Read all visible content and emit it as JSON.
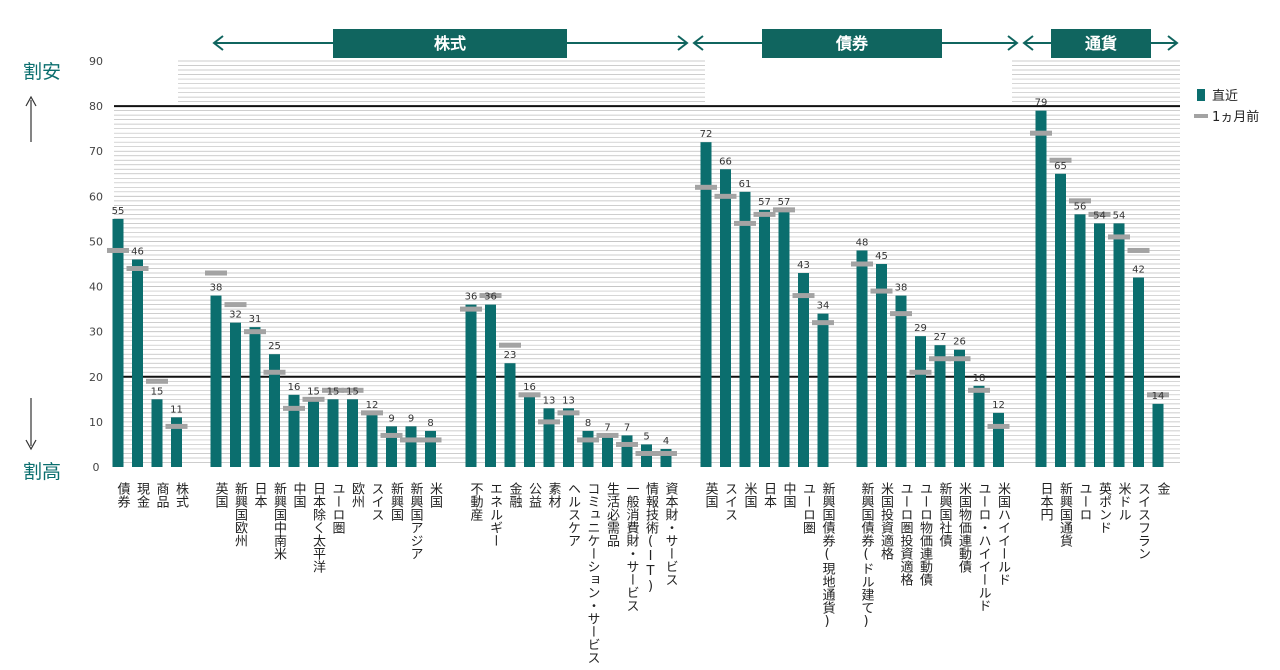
{
  "chart_data": {
    "type": "bar",
    "ylim": [
      0,
      90
    ],
    "yticks": [
      0,
      10,
      20,
      30,
      40,
      50,
      60,
      70,
      80,
      90
    ],
    "threshold_lines": [
      20,
      80
    ],
    "colors": {
      "bar": "#0b6e6e",
      "marker": "#a3a3a3",
      "banner": "#10655f",
      "threshold": "#111111",
      "grid": "#bdbdbd"
    },
    "side_labels": {
      "top": "割安",
      "bottom": "割高"
    },
    "legend": [
      {
        "name": "直近",
        "kind": "bar"
      },
      {
        "name": "1ヵ月前",
        "kind": "marker"
      }
    ],
    "sections": [
      {
        "name": "株式",
        "from": 4,
        "to": 27
      },
      {
        "name": "債券",
        "from": 28,
        "to": 43
      },
      {
        "name": "通貨",
        "from": 44,
        "to": 50
      }
    ],
    "categories": [
      "債券",
      "現金",
      "商品",
      "株式",
      "英国",
      "新興国欧州",
      "日本",
      "新興国中南米",
      "中国",
      "日本除く太平洋",
      "ユーロ圏",
      "欧州",
      "スイス",
      "新興国",
      "新興国アジア",
      "米国",
      "不動産",
      "エネルギー",
      "金融",
      "公益",
      "素材",
      "ヘルスケア",
      "コミュニケーション・サービス",
      "生活必需品",
      "一般消費財・サービス",
      "情報技術(IT)",
      "資本財・サービス",
      "英国",
      "スイス",
      "米国",
      "日本",
      "中国",
      "ユーロ圏",
      "新興国債券(現地通貨)",
      "新興国債券(ドル建て)",
      "米国投資適格",
      "ユーロ圏投資適格",
      "ユーロ物価連動債",
      "新興国社債",
      "米国物価連動債",
      "ユーロ・ハイイールド",
      "米国ハイイールド",
      "日本円",
      "新興国通貨",
      "ユーロ",
      "英ポンド",
      "米ドル",
      "スイスフラン",
      "金"
    ],
    "groups": [
      [
        0,
        1,
        2,
        3
      ],
      [
        4,
        5,
        6,
        7,
        8,
        9,
        10,
        11,
        12,
        13,
        14,
        15
      ],
      [
        16,
        17,
        18,
        19,
        20,
        21,
        22,
        23,
        24,
        25,
        26
      ],
      [
        27,
        28,
        29,
        30,
        31,
        32,
        33
      ],
      [
        34,
        35,
        36,
        37,
        38,
        39,
        40,
        41
      ],
      [
        42,
        43,
        44,
        45,
        46,
        47,
        48
      ]
    ],
    "series": [
      {
        "name": "直近",
        "values": [
          55,
          46,
          15,
          11,
          38,
          32,
          31,
          25,
          16,
          15,
          15,
          15,
          12,
          9,
          9,
          8,
          36,
          36,
          23,
          16,
          13,
          13,
          8,
          7,
          7,
          5,
          4,
          72,
          66,
          61,
          57,
          57,
          43,
          34,
          48,
          45,
          38,
          29,
          27,
          26,
          18,
          12,
          79,
          65,
          56,
          54,
          54,
          42,
          14
        ]
      },
      {
        "name": "1ヵ月前",
        "values": [
          48,
          44,
          19,
          9,
          43,
          36,
          30,
          21,
          13,
          15,
          17,
          17,
          12,
          7,
          6,
          6,
          35,
          38,
          27,
          16,
          10,
          12,
          6,
          7,
          5,
          3,
          3,
          62,
          60,
          54,
          56,
          57,
          38,
          32,
          45,
          39,
          34,
          21,
          24,
          24,
          17,
          9,
          74,
          68,
          59,
          56,
          51,
          48,
          16
        ]
      }
    ]
  }
}
